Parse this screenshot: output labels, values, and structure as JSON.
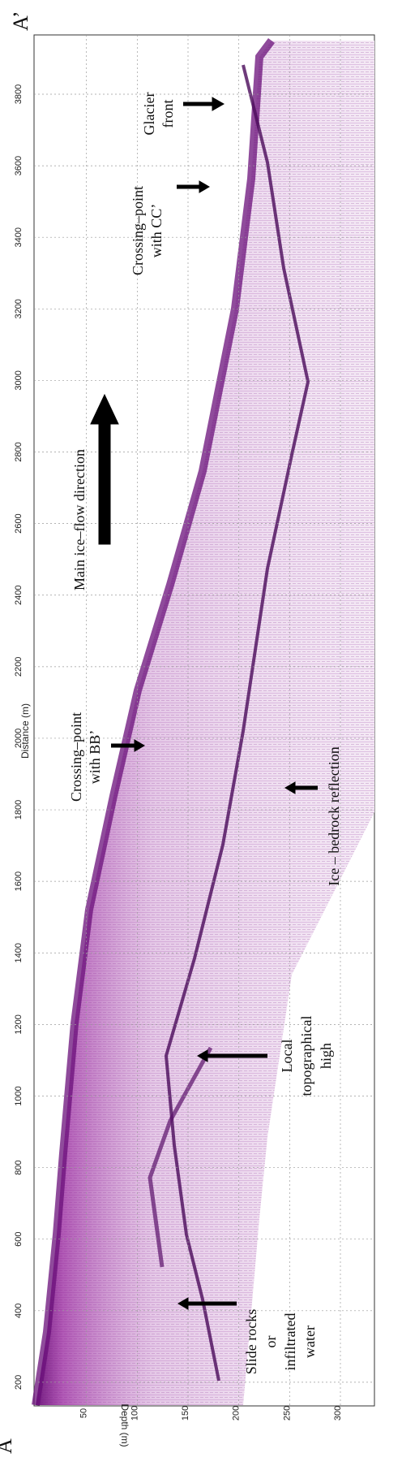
{
  "corner_labels": {
    "start": "A",
    "end": "A’"
  },
  "axes": {
    "distance_label": "Distance (m)",
    "distance_ticks": [
      "200",
      "400",
      "600",
      "800",
      "1000",
      "1200",
      "1400",
      "1600",
      "1800",
      "2000",
      "2200",
      "2400",
      "2600",
      "2800",
      "3000",
      "3200",
      "3400",
      "3600",
      "3800"
    ],
    "depth_label": "Depth (m)",
    "depth_ticks": [
      "50",
      "100",
      "150",
      "200",
      "250",
      "300"
    ]
  },
  "annotations": {
    "glacier_front": [
      "Glacier",
      "front"
    ],
    "crossing_cc": [
      "Crossing–point",
      "with CC’"
    ],
    "ice_flow": [
      "Main ice–flow direction"
    ],
    "crossing_bb": [
      "Crossing–point",
      "with BB’"
    ],
    "bedrock": [
      "Ice – bedrock reflection"
    ],
    "topo_high": [
      "Local",
      "topographical",
      "high"
    ],
    "slide_rocks": [
      "Slide rocks",
      "or",
      "infiltrated",
      "water"
    ]
  },
  "colors": {
    "radargram": "#8a1c8f",
    "radargram_dark": "#5a0f6a",
    "bedrock": "#4a0a5a",
    "arrow": "#000000",
    "grid": "#9a9a9a"
  }
}
